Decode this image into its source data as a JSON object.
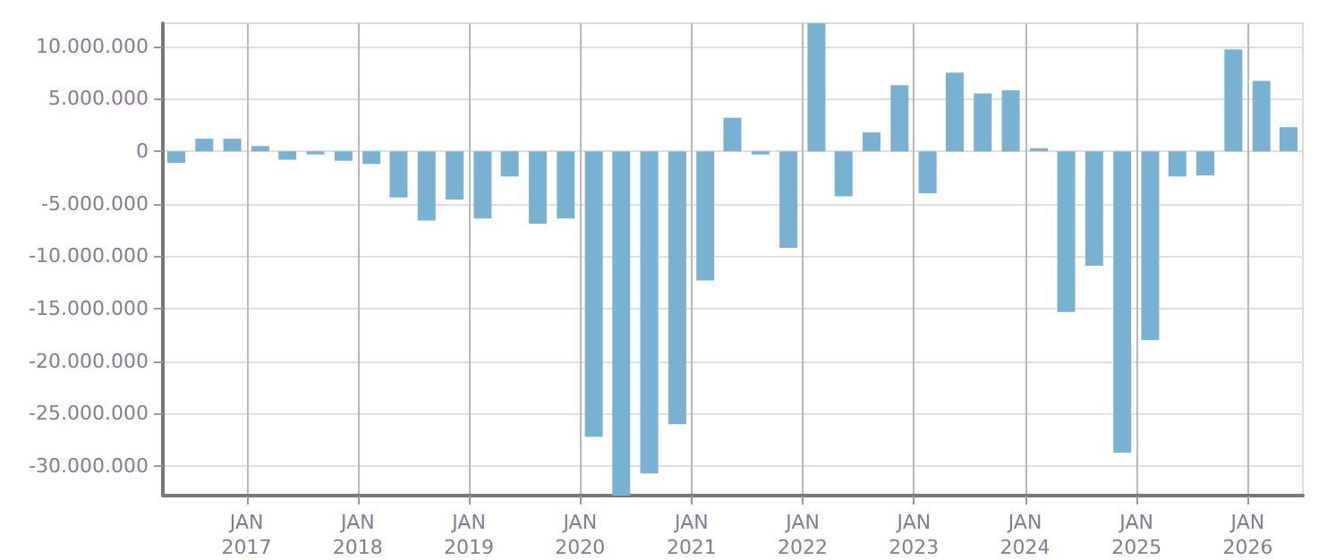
{
  "chart_data": {
    "type": "bar",
    "x": [
      "2016-05-15",
      "2016-08-15",
      "2016-11-15",
      "2017-02-15",
      "2017-05-15",
      "2017-08-15",
      "2017-11-15",
      "2018-02-15",
      "2018-05-15",
      "2018-08-15",
      "2018-11-15",
      "2019-02-15",
      "2019-05-15",
      "2019-08-15",
      "2019-11-15",
      "2020-02-15",
      "2020-05-15",
      "2020-08-15",
      "2020-11-15",
      "2021-02-15",
      "2021-05-15",
      "2021-08-15",
      "2021-11-15",
      "2022-02-15",
      "2022-05-15",
      "2022-08-15",
      "2022-11-15",
      "2023-02-15",
      "2023-05-15",
      "2023-08-15",
      "2023-11-15",
      "2024-02-15",
      "2024-05-15",
      "2024-08-15",
      "2024-11-15",
      "2025-02-15",
      "2025-05-15",
      "2025-08-15",
      "2025-11-15",
      "2026-02-15",
      "2026-05-15"
    ],
    "values": [
      -1100000,
      1200000,
      1200000,
      500000,
      -800000,
      -300000,
      -900000,
      -1200000,
      -4400000,
      -6600000,
      -4600000,
      -6400000,
      -2400000,
      -6900000,
      -6400000,
      -27200000,
      -32800000,
      -30700000,
      -26000000,
      -12300000,
      3200000,
      -300000,
      -9200000,
      12200000,
      -4300000,
      1800000,
      6300000,
      -4000000,
      7500000,
      5500000,
      5800000,
      300000,
      -15300000,
      -10900000,
      -28700000,
      -18000000,
      -2400000,
      -2300000,
      9700000,
      6700000,
      2300000
    ],
    "color": "#79b1d3",
    "xlim": [
      "2016-04-01",
      "2026-07-01"
    ],
    "xticks": [
      {
        "value": "2017-01-01",
        "label": "JAN\n2017"
      },
      {
        "value": "2018-01-01",
        "label": "JAN\n2018"
      },
      {
        "value": "2019-01-01",
        "label": "JAN\n2019"
      },
      {
        "value": "2020-01-01",
        "label": "JAN\n2020"
      },
      {
        "value": "2021-01-01",
        "label": "JAN\n2021"
      },
      {
        "value": "2022-01-01",
        "label": "JAN\n2022"
      },
      {
        "value": "2023-01-01",
        "label": "JAN\n2023"
      },
      {
        "value": "2024-01-01",
        "label": "JAN\n2024"
      },
      {
        "value": "2025-01-01",
        "label": "JAN\n2025"
      },
      {
        "value": "2026-01-01",
        "label": "JAN\n2026"
      }
    ],
    "ylim": [
      -32800000,
      12200000
    ],
    "yticks": [
      {
        "value": -30000000,
        "label": "-30.000.000"
      },
      {
        "value": -25000000,
        "label": "-25.000.000"
      },
      {
        "value": -20000000,
        "label": "-20.000.000"
      },
      {
        "value": -15000000,
        "label": "-15.000.000"
      },
      {
        "value": -10000000,
        "label": "-10.000.000"
      },
      {
        "value": -5000000,
        "label": "-5.000.000"
      },
      {
        "value": 0,
        "label": "0"
      },
      {
        "value": 5000000,
        "label": "5.000.000"
      },
      {
        "value": 10000000,
        "label": "10.000.000"
      }
    ],
    "grid": true
  }
}
